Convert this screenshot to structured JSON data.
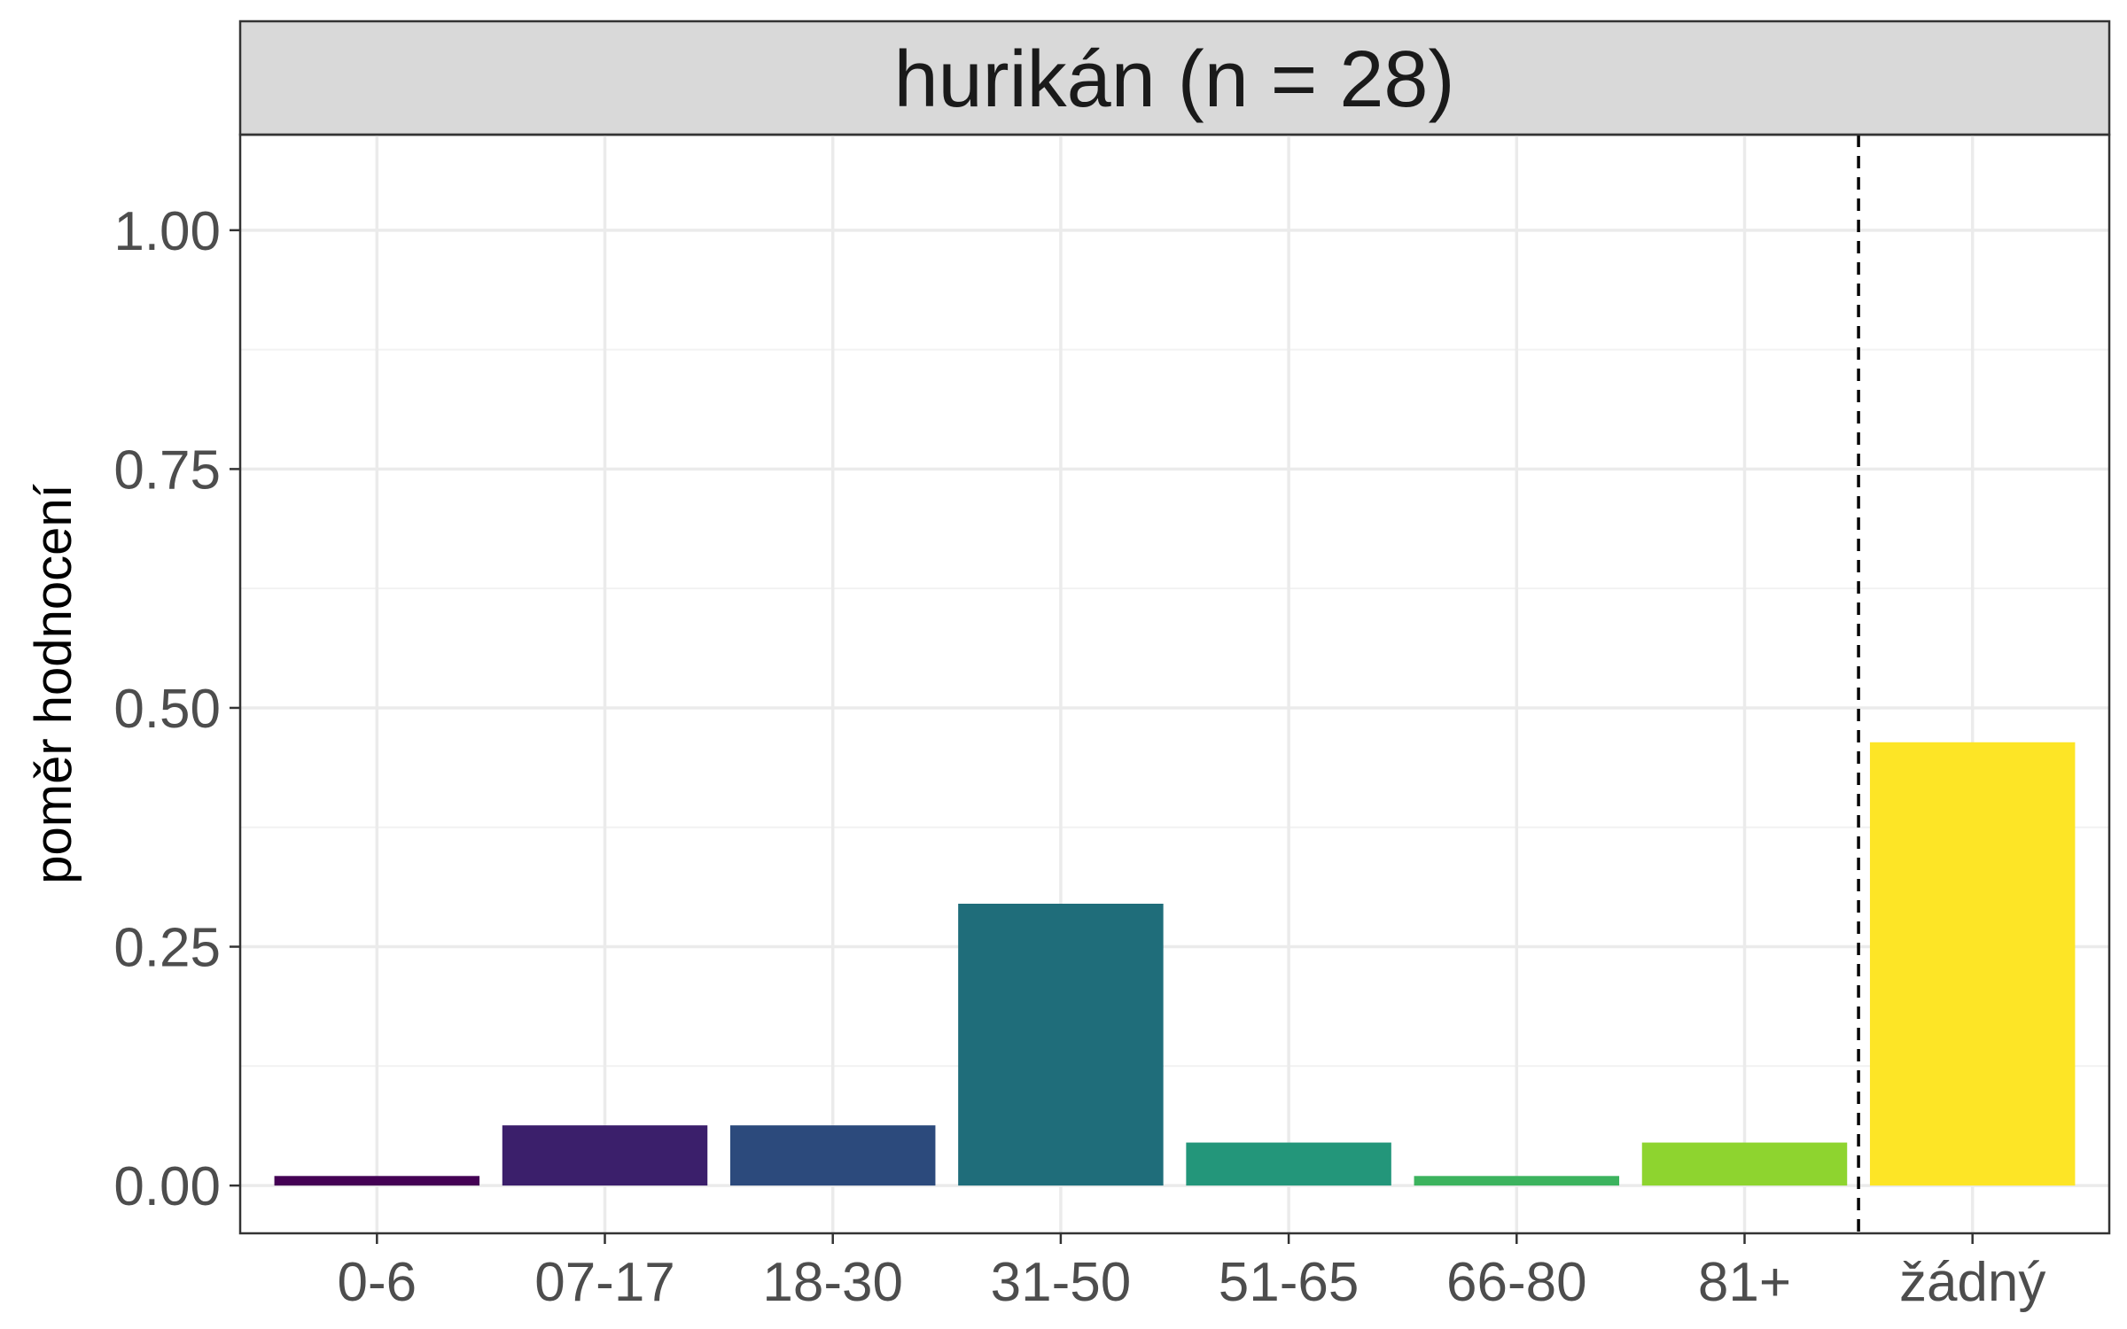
{
  "chart_data": {
    "type": "bar",
    "facet_title": "hurikán (n = 28)",
    "ylabel": "poměr hodnocení",
    "xlabel": "",
    "categories": [
      "0-6",
      "07-17",
      "18-30",
      "31-50",
      "51-65",
      "66-80",
      "81+",
      "žádný"
    ],
    "values": [
      0.01,
      0.063,
      0.063,
      0.295,
      0.045,
      0.01,
      0.045,
      0.464
    ],
    "colors": [
      "#440154",
      "#3b1f6b",
      "#2c4a7c",
      "#1f6d7a",
      "#23967a",
      "#3cb35e",
      "#8ed42f",
      "#fde526"
    ],
    "ylim": [
      -0.05,
      1.1
    ],
    "yticks": [
      0,
      0.25,
      0.5,
      0.75,
      1.0
    ],
    "ytick_labels": [
      "0.00",
      "0.25",
      "0.50",
      "0.75",
      "1.00"
    ],
    "reference_line": {
      "between": [
        "81+",
        "žádný"
      ],
      "style": "dashed"
    },
    "grid": true,
    "legend": "none",
    "colors_meta": {
      "panel_border": "#333333",
      "strip_fill": "#d9d9d9",
      "grid": "#ebebeb",
      "tick_text": "#4d4d4d"
    }
  }
}
